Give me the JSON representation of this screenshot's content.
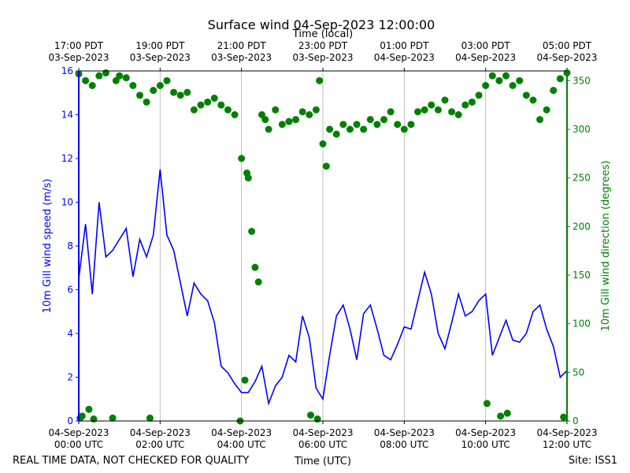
{
  "chart_data": {
    "type": "line",
    "title": "Surface wind 04-Sep-2023 12:00:00",
    "x2label": "Time (local)",
    "xlabel": "Time (UTC)",
    "ylabel": "10m Gill wind speed (m/s)",
    "y2label": "10m Gill wind direction (degrees)",
    "footer_left": "REAL TIME DATA, NOT CHECKED FOR QUALITY",
    "footer_right": "Site: ISS1",
    "grid": true,
    "xlim": [
      "2023-09-04T00:00Z",
      "2023-09-04T12:00Z"
    ],
    "xticks": [
      {
        "value": "2023-09-04T00:00Z",
        "label": "04-Sep-2023\n00:00 UTC"
      },
      {
        "value": "2023-09-04T02:00Z",
        "label": "04-Sep-2023\n02:00 UTC"
      },
      {
        "value": "2023-09-04T04:00Z",
        "label": "04-Sep-2023\n04:00 UTC"
      },
      {
        "value": "2023-09-04T06:00Z",
        "label": "04-Sep-2023\n06:00 UTC"
      },
      {
        "value": "2023-09-04T08:00Z",
        "label": "04-Sep-2023\n08:00 UTC"
      },
      {
        "value": "2023-09-04T10:00Z",
        "label": "04-Sep-2023\n10:00 UTC"
      },
      {
        "value": "2023-09-04T12:00Z",
        "label": "04-Sep-2023\n12:00 UTC"
      }
    ],
    "x2ticks": [
      {
        "value": "2023-09-04T00:00Z",
        "label": "17:00 PDT\n03-Sep-2023"
      },
      {
        "value": "2023-09-04T02:00Z",
        "label": "19:00 PDT\n03-Sep-2023"
      },
      {
        "value": "2023-09-04T04:00Z",
        "label": "21:00 PDT\n03-Sep-2023"
      },
      {
        "value": "2023-09-04T06:00Z",
        "label": "23:00 PDT\n03-Sep-2023"
      },
      {
        "value": "2023-09-04T08:00Z",
        "label": "01:00 PDT\n04-Sep-2023"
      },
      {
        "value": "2023-09-04T10:00Z",
        "label": "03:00 PDT\n04-Sep-2023"
      },
      {
        "value": "2023-09-04T12:00Z",
        "label": "05:00 PDT\n04-Sep-2023"
      }
    ],
    "ylim": [
      0,
      16
    ],
    "yticks": [
      0,
      2,
      4,
      6,
      8,
      10,
      12,
      14,
      16
    ],
    "y2lim": [
      0,
      360
    ],
    "y2ticks": [
      0,
      50,
      100,
      150,
      200,
      250,
      300,
      350
    ],
    "series": [
      {
        "type": "line",
        "color": "#0000ff",
        "x": [
          "2023-09-04T00:00Z",
          "2023-09-04T00:10Z",
          "2023-09-04T00:20Z",
          "2023-09-04T00:30Z",
          "2023-09-04T00:40Z",
          "2023-09-04T00:50Z",
          "2023-09-04T01:00Z",
          "2023-09-04T01:10Z",
          "2023-09-04T01:20Z",
          "2023-09-04T01:30Z",
          "2023-09-04T01:40Z",
          "2023-09-04T01:50Z",
          "2023-09-04T02:00Z",
          "2023-09-04T02:10Z",
          "2023-09-04T02:20Z",
          "2023-09-04T02:30Z",
          "2023-09-04T02:40Z",
          "2023-09-04T02:50Z",
          "2023-09-04T03:00Z",
          "2023-09-04T03:10Z",
          "2023-09-04T03:20Z",
          "2023-09-04T03:30Z",
          "2023-09-04T03:40Z",
          "2023-09-04T03:50Z",
          "2023-09-04T04:00Z",
          "2023-09-04T04:10Z",
          "2023-09-04T04:20Z",
          "2023-09-04T04:30Z",
          "2023-09-04T04:40Z",
          "2023-09-04T04:50Z",
          "2023-09-04T05:00Z",
          "2023-09-04T05:10Z",
          "2023-09-04T05:20Z",
          "2023-09-04T05:30Z",
          "2023-09-04T05:40Z",
          "2023-09-04T05:50Z",
          "2023-09-04T06:00Z",
          "2023-09-04T06:10Z",
          "2023-09-04T06:20Z",
          "2023-09-04T06:30Z",
          "2023-09-04T06:40Z",
          "2023-09-04T06:50Z",
          "2023-09-04T07:00Z",
          "2023-09-04T07:10Z",
          "2023-09-04T07:20Z",
          "2023-09-04T07:30Z",
          "2023-09-04T07:40Z",
          "2023-09-04T07:50Z",
          "2023-09-04T08:00Z",
          "2023-09-04T08:10Z",
          "2023-09-04T08:20Z",
          "2023-09-04T08:30Z",
          "2023-09-04T08:40Z",
          "2023-09-04T08:50Z",
          "2023-09-04T09:00Z",
          "2023-09-04T09:10Z",
          "2023-09-04T09:20Z",
          "2023-09-04T09:30Z",
          "2023-09-04T09:40Z",
          "2023-09-04T09:50Z",
          "2023-09-04T10:00Z",
          "2023-09-04T10:10Z",
          "2023-09-04T10:20Z",
          "2023-09-04T10:30Z",
          "2023-09-04T10:40Z",
          "2023-09-04T10:50Z",
          "2023-09-04T11:00Z",
          "2023-09-04T11:10Z",
          "2023-09-04T11:20Z",
          "2023-09-04T11:30Z",
          "2023-09-04T11:40Z",
          "2023-09-04T11:50Z",
          "2023-09-04T12:00Z"
        ],
        "values": [
          6.5,
          9.0,
          5.8,
          10.0,
          7.5,
          7.8,
          8.3,
          8.8,
          6.6,
          8.3,
          7.5,
          8.5,
          11.5,
          8.5,
          7.8,
          6.3,
          4.8,
          6.3,
          5.8,
          5.5,
          4.5,
          2.5,
          2.2,
          1.7,
          1.3,
          1.3,
          1.8,
          2.5,
          0.8,
          1.6,
          2.0,
          3.0,
          2.7,
          4.8,
          3.8,
          1.5,
          1.0,
          3.0,
          4.8,
          5.3,
          4.2,
          2.8,
          4.9,
          5.3,
          4.2,
          3.0,
          2.8,
          3.5,
          4.3,
          4.2,
          5.5,
          6.8,
          5.8,
          4.0,
          3.3,
          4.5,
          5.8,
          4.8,
          5.0,
          5.5,
          5.8,
          3.0,
          3.8,
          4.6,
          3.7,
          3.6,
          4.0,
          5.0,
          5.3,
          4.2,
          3.4,
          2.0,
          2.3
        ]
      },
      {
        "type": "scatter",
        "axis": "y2",
        "color": "#008000",
        "x": [
          "2023-09-04T00:00Z",
          "2023-09-04T00:02Z",
          "2023-09-04T00:05Z",
          "2023-09-04T00:10Z",
          "2023-09-04T00:15Z",
          "2023-09-04T00:20Z",
          "2023-09-04T00:22Z",
          "2023-09-04T00:30Z",
          "2023-09-04T00:40Z",
          "2023-09-04T00:50Z",
          "2023-09-04T00:55Z",
          "2023-09-04T01:00Z",
          "2023-09-04T01:10Z",
          "2023-09-04T01:20Z",
          "2023-09-04T01:30Z",
          "2023-09-04T01:40Z",
          "2023-09-04T01:45Z",
          "2023-09-04T01:50Z",
          "2023-09-04T02:00Z",
          "2023-09-04T02:10Z",
          "2023-09-04T02:20Z",
          "2023-09-04T02:30Z",
          "2023-09-04T02:40Z",
          "2023-09-04T02:50Z",
          "2023-09-04T03:00Z",
          "2023-09-04T03:10Z",
          "2023-09-04T03:20Z",
          "2023-09-04T03:30Z",
          "2023-09-04T03:40Z",
          "2023-09-04T03:50Z",
          "2023-09-04T03:58Z",
          "2023-09-04T04:00Z",
          "2023-09-04T04:05Z",
          "2023-09-04T04:08Z",
          "2023-09-04T04:10Z",
          "2023-09-04T04:15Z",
          "2023-09-04T04:20Z",
          "2023-09-04T04:25Z",
          "2023-09-04T04:30Z",
          "2023-09-04T04:35Z",
          "2023-09-04T04:40Z",
          "2023-09-04T04:50Z",
          "2023-09-04T05:00Z",
          "2023-09-04T05:10Z",
          "2023-09-04T05:20Z",
          "2023-09-04T05:30Z",
          "2023-09-04T05:40Z",
          "2023-09-04T05:42Z",
          "2023-09-04T05:50Z",
          "2023-09-04T05:52Z",
          "2023-09-04T05:55Z",
          "2023-09-04T06:00Z",
          "2023-09-04T06:05Z",
          "2023-09-04T06:10Z",
          "2023-09-04T06:20Z",
          "2023-09-04T06:30Z",
          "2023-09-04T06:40Z",
          "2023-09-04T06:50Z",
          "2023-09-04T07:00Z",
          "2023-09-04T07:10Z",
          "2023-09-04T07:20Z",
          "2023-09-04T07:30Z",
          "2023-09-04T07:40Z",
          "2023-09-04T07:50Z",
          "2023-09-04T08:00Z",
          "2023-09-04T08:10Z",
          "2023-09-04T08:20Z",
          "2023-09-04T08:30Z",
          "2023-09-04T08:40Z",
          "2023-09-04T08:50Z",
          "2023-09-04T09:00Z",
          "2023-09-04T09:10Z",
          "2023-09-04T09:20Z",
          "2023-09-04T09:30Z",
          "2023-09-04T09:40Z",
          "2023-09-04T09:50Z",
          "2023-09-04T10:00Z",
          "2023-09-04T10:02Z",
          "2023-09-04T10:10Z",
          "2023-09-04T10:20Z",
          "2023-09-04T10:22Z",
          "2023-09-04T10:30Z",
          "2023-09-04T10:32Z",
          "2023-09-04T10:40Z",
          "2023-09-04T10:50Z",
          "2023-09-04T11:00Z",
          "2023-09-04T11:10Z",
          "2023-09-04T11:20Z",
          "2023-09-04T11:30Z",
          "2023-09-04T11:40Z",
          "2023-09-04T11:50Z",
          "2023-09-04T11:55Z",
          "2023-09-04T12:00Z"
        ],
        "values": [
          357,
          3,
          5,
          350,
          12,
          345,
          2,
          355,
          358,
          3,
          350,
          355,
          353,
          345,
          335,
          328,
          3,
          340,
          345,
          350,
          338,
          335,
          338,
          320,
          325,
          328,
          332,
          325,
          320,
          315,
          0,
          270,
          42,
          255,
          250,
          195,
          158,
          143,
          315,
          310,
          300,
          320,
          305,
          308,
          310,
          318,
          315,
          6,
          320,
          2,
          350,
          285,
          262,
          300,
          295,
          305,
          300,
          305,
          300,
          310,
          305,
          310,
          318,
          305,
          300,
          305,
          318,
          320,
          325,
          320,
          330,
          318,
          315,
          325,
          328,
          335,
          345,
          18,
          355,
          350,
          5,
          355,
          8,
          345,
          350,
          335,
          330,
          310,
          320,
          340,
          352,
          4,
          358
        ]
      }
    ]
  }
}
